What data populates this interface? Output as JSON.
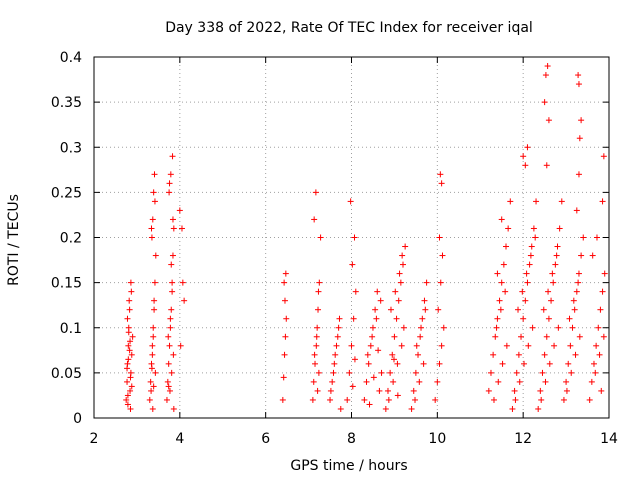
{
  "chart_data": {
    "type": "scatter",
    "title": "Day 338 of 2022, Rate Of TEC Index for receiver iqal",
    "xlabel": "GPS time / hours",
    "ylabel": "ROTI / TECUs",
    "xlim": [
      2,
      14
    ],
    "ylim": [
      0,
      0.4
    ],
    "xticks": [
      2,
      4,
      6,
      8,
      10,
      12,
      14
    ],
    "xtick_labels": [
      "2",
      "4",
      "6",
      "8",
      "10",
      "12",
      "14"
    ],
    "yticks": [
      0,
      0.05,
      0.1,
      0.15,
      0.2,
      0.25,
      0.3,
      0.35,
      0.4
    ],
    "ytick_labels": [
      "0",
      "0.05",
      "0.1",
      "0.15",
      "0.2",
      "0.25",
      "0.3",
      "0.35",
      "0.4"
    ],
    "grid": true,
    "marker": "+",
    "marker_color": "#ff0000",
    "series": [
      {
        "name": "ROTI",
        "x": [
          2.75,
          2.77,
          2.78,
          2.8,
          2.81,
          2.83,
          2.84,
          2.86,
          2.88,
          2.9,
          2.78,
          2.82,
          2.86,
          2.79,
          2.85,
          2.8,
          2.84,
          2.88,
          2.77,
          2.83,
          2.81,
          2.87,
          2.79,
          2.85,
          3.3,
          3.32,
          3.34,
          3.36,
          3.38,
          3.4,
          3.42,
          3.44,
          3.35,
          3.37,
          3.39,
          3.41,
          3.33,
          3.43,
          3.36,
          3.38,
          3.4,
          3.34,
          3.42,
          3.37,
          3.39,
          3.35,
          3.7,
          3.72,
          3.74,
          3.76,
          3.78,
          3.8,
          3.82,
          3.84,
          3.86,
          3.75,
          3.79,
          3.83,
          3.77,
          3.81,
          3.85,
          3.73,
          3.78,
          3.82,
          3.8,
          3.84,
          3.76,
          3.86,
          3.74,
          4.0,
          4.05,
          4.1,
          4.02,
          4.07,
          6.4,
          6.42,
          6.44,
          6.46,
          6.48,
          6.45,
          6.43,
          6.47,
          7.1,
          7.12,
          7.15,
          7.18,
          7.2,
          7.22,
          7.25,
          7.28,
          7.13,
          7.17,
          7.21,
          7.24,
          7.14,
          7.19,
          7.23,
          7.5,
          7.55,
          7.6,
          7.65,
          7.7,
          7.75,
          7.52,
          7.58,
          7.62,
          7.68,
          7.72,
          7.9,
          7.95,
          8.0,
          8.05,
          8.1,
          8.02,
          8.07,
          7.98,
          8.03,
          8.08,
          8.3,
          8.35,
          8.4,
          8.45,
          8.5,
          8.55,
          8.6,
          8.65,
          8.7,
          8.38,
          8.48,
          8.58,
          8.68,
          8.42,
          8.52,
          8.62,
          8.8,
          8.85,
          8.9,
          8.95,
          9.0,
          9.05,
          9.1,
          9.15,
          9.2,
          9.25,
          8.87,
          8.97,
          9.07,
          9.17,
          9.22,
          8.92,
          9.02,
          9.12,
          9.18,
          9.08,
          8.99,
          9.4,
          9.45,
          9.5,
          9.55,
          9.6,
          9.65,
          9.7,
          9.75,
          9.48,
          9.58,
          9.68,
          9.52,
          9.62,
          9.72,
          9.95,
          10.0,
          10.05,
          10.1,
          10.15,
          10.02,
          10.08,
          10.12,
          10.05,
          10.1,
          10.07,
          11.2,
          11.25,
          11.3,
          11.35,
          11.4,
          11.45,
          11.5,
          11.55,
          11.6,
          11.65,
          11.7,
          11.32,
          11.42,
          11.52,
          11.62,
          11.38,
          11.48,
          11.58,
          11.4,
          11.5,
          11.75,
          11.8,
          11.85,
          11.9,
          11.95,
          12.0,
          12.05,
          12.1,
          12.15,
          12.2,
          12.25,
          12.3,
          11.82,
          11.92,
          12.02,
          12.12,
          12.22,
          11.88,
          11.98,
          12.08,
          12.18,
          12.28,
          12.0,
          12.05,
          12.1,
          12.35,
          12.4,
          12.45,
          12.5,
          12.55,
          12.6,
          12.65,
          12.7,
          12.75,
          12.8,
          12.85,
          12.9,
          12.42,
          12.52,
          12.62,
          12.72,
          12.82,
          12.48,
          12.58,
          12.68,
          12.78,
          12.55,
          12.6,
          12.5,
          12.53,
          12.57,
          12.95,
          13.0,
          13.05,
          13.1,
          13.15,
          13.2,
          13.25,
          13.3,
          13.35,
          13.4,
          13.02,
          13.12,
          13.22,
          13.32,
          13.08,
          13.18,
          13.28,
          13.25,
          13.3,
          13.32,
          13.35,
          13.3,
          13.28,
          13.55,
          13.6,
          13.65,
          13.7,
          13.75,
          13.8,
          13.85,
          13.9,
          13.62,
          13.72,
          13.82,
          13.68,
          13.78,
          13.88,
          13.85,
          13.88
        ],
        "y": [
          0.02,
          0.04,
          0.06,
          0.08,
          0.1,
          0.12,
          0.03,
          0.05,
          0.07,
          0.09,
          0.11,
          0.13,
          0.15,
          0.025,
          0.045,
          0.065,
          0.085,
          0.035,
          0.055,
          0.075,
          0.095,
          0.14,
          0.015,
          0.01,
          0.02,
          0.04,
          0.06,
          0.08,
          0.1,
          0.12,
          0.15,
          0.18,
          0.2,
          0.22,
          0.25,
          0.27,
          0.03,
          0.05,
          0.07,
          0.09,
          0.13,
          0.21,
          0.24,
          0.01,
          0.035,
          0.055,
          0.02,
          0.04,
          0.06,
          0.08,
          0.1,
          0.12,
          0.15,
          0.18,
          0.21,
          0.25,
          0.27,
          0.29,
          0.03,
          0.05,
          0.07,
          0.09,
          0.11,
          0.14,
          0.17,
          0.22,
          0.26,
          0.01,
          0.035,
          0.23,
          0.21,
          0.13,
          0.08,
          0.15,
          0.02,
          0.045,
          0.07,
          0.09,
          0.11,
          0.13,
          0.15,
          0.16,
          0.02,
          0.04,
          0.06,
          0.08,
          0.1,
          0.12,
          0.15,
          0.2,
          0.22,
          0.25,
          0.03,
          0.05,
          0.07,
          0.09,
          0.14,
          0.02,
          0.04,
          0.06,
          0.08,
          0.1,
          0.01,
          0.03,
          0.05,
          0.07,
          0.09,
          0.11,
          0.02,
          0.05,
          0.08,
          0.11,
          0.14,
          0.17,
          0.2,
          0.24,
          0.035,
          0.065,
          0.02,
          0.04,
          0.06,
          0.08,
          0.1,
          0.12,
          0.14,
          0.03,
          0.05,
          0.07,
          0.09,
          0.11,
          0.13,
          0.015,
          0.045,
          0.075,
          0.01,
          0.03,
          0.05,
          0.07,
          0.09,
          0.11,
          0.13,
          0.15,
          0.17,
          0.19,
          0.02,
          0.04,
          0.06,
          0.08,
          0.1,
          0.12,
          0.14,
          0.16,
          0.18,
          0.025,
          0.065,
          0.01,
          0.03,
          0.05,
          0.07,
          0.09,
          0.11,
          0.13,
          0.15,
          0.02,
          0.04,
          0.06,
          0.08,
          0.1,
          0.12,
          0.02,
          0.04,
          0.06,
          0.08,
          0.1,
          0.12,
          0.15,
          0.18,
          0.2,
          0.26,
          0.27,
          0.03,
          0.05,
          0.07,
          0.09,
          0.11,
          0.13,
          0.15,
          0.17,
          0.19,
          0.21,
          0.24,
          0.02,
          0.04,
          0.06,
          0.08,
          0.1,
          0.12,
          0.14,
          0.16,
          0.22,
          0.01,
          0.03,
          0.05,
          0.07,
          0.09,
          0.11,
          0.13,
          0.15,
          0.17,
          0.19,
          0.21,
          0.24,
          0.02,
          0.04,
          0.06,
          0.08,
          0.1,
          0.12,
          0.14,
          0.16,
          0.18,
          0.2,
          0.29,
          0.28,
          0.3,
          0.01,
          0.03,
          0.05,
          0.07,
          0.09,
          0.11,
          0.13,
          0.15,
          0.17,
          0.19,
          0.21,
          0.24,
          0.02,
          0.04,
          0.06,
          0.08,
          0.1,
          0.12,
          0.14,
          0.16,
          0.18,
          0.28,
          0.33,
          0.35,
          0.38,
          0.39,
          0.02,
          0.04,
          0.06,
          0.08,
          0.1,
          0.12,
          0.14,
          0.16,
          0.18,
          0.2,
          0.03,
          0.05,
          0.07,
          0.09,
          0.11,
          0.13,
          0.15,
          0.23,
          0.27,
          0.31,
          0.33,
          0.37,
          0.38,
          0.02,
          0.04,
          0.06,
          0.08,
          0.1,
          0.12,
          0.14,
          0.16,
          0.18,
          0.2,
          0.03,
          0.05,
          0.07,
          0.09,
          0.24,
          0.29
        ]
      }
    ]
  }
}
